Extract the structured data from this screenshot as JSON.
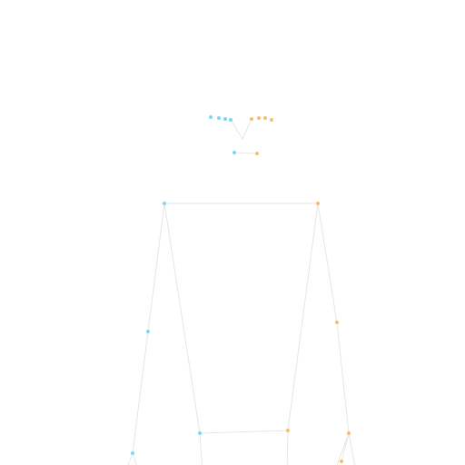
{
  "colors": {
    "background": "#ffffff",
    "bone": "#e6e6e6",
    "left_side": "#7dd8f2",
    "right_side": "#f7bd6e"
  },
  "pose": {
    "bones": [
      {
        "name": "bone-nose-to-left-brow",
        "from": "nose-tip",
        "to": "left-brow-inner",
        "side": "neutral"
      },
      {
        "name": "bone-nose-to-right-brow",
        "from": "nose-tip",
        "to": "right-brow-inner",
        "side": "neutral"
      },
      {
        "name": "bone-mouth",
        "from": "mouth-left",
        "to": "mouth-right",
        "side": "neutral"
      },
      {
        "name": "bone-shoulders",
        "from": "left-shoulder",
        "to": "right-shoulder",
        "side": "neutral"
      },
      {
        "name": "bone-left-torso",
        "from": "left-shoulder",
        "to": "left-hip",
        "side": "neutral"
      },
      {
        "name": "bone-right-torso",
        "from": "right-shoulder",
        "to": "right-hip",
        "side": "neutral"
      },
      {
        "name": "bone-hips",
        "from": "left-hip",
        "to": "right-hip",
        "side": "neutral"
      },
      {
        "name": "bone-left-upper-arm",
        "from": "left-shoulder",
        "to": "left-elbow",
        "side": "neutral"
      },
      {
        "name": "bone-left-forearm",
        "from": "left-elbow",
        "to": "left-wrist",
        "side": "neutral"
      },
      {
        "name": "bone-right-upper-arm",
        "from": "right-shoulder",
        "to": "right-elbow",
        "side": "neutral"
      },
      {
        "name": "bone-right-forearm",
        "from": "right-elbow",
        "to": "right-wrist",
        "side": "neutral"
      },
      {
        "name": "bone-right-wrist-to-hand",
        "from": "right-wrist",
        "to": "right-hand",
        "side": "neutral"
      }
    ],
    "joints": [
      {
        "name": "left-brow-outer",
        "side": "left"
      },
      {
        "name": "left-brow-mid-outer",
        "side": "left"
      },
      {
        "name": "left-brow-mid-inner",
        "side": "left"
      },
      {
        "name": "left-brow-inner",
        "side": "left"
      },
      {
        "name": "right-brow-inner",
        "side": "right"
      },
      {
        "name": "right-brow-mid-inner",
        "side": "right"
      },
      {
        "name": "right-brow-mid-outer",
        "side": "right"
      },
      {
        "name": "right-brow-outer",
        "side": "right"
      },
      {
        "name": "mouth-left",
        "side": "left"
      },
      {
        "name": "mouth-right",
        "side": "right"
      },
      {
        "name": "left-shoulder",
        "side": "left"
      },
      {
        "name": "right-shoulder",
        "side": "right"
      },
      {
        "name": "left-elbow",
        "side": "left"
      },
      {
        "name": "right-elbow",
        "side": "right"
      },
      {
        "name": "left-hip",
        "side": "left"
      },
      {
        "name": "right-hip",
        "side": "right"
      },
      {
        "name": "left-wrist",
        "side": "left"
      },
      {
        "name": "right-wrist",
        "side": "right"
      },
      {
        "name": "right-hand",
        "side": "right"
      }
    ]
  }
}
